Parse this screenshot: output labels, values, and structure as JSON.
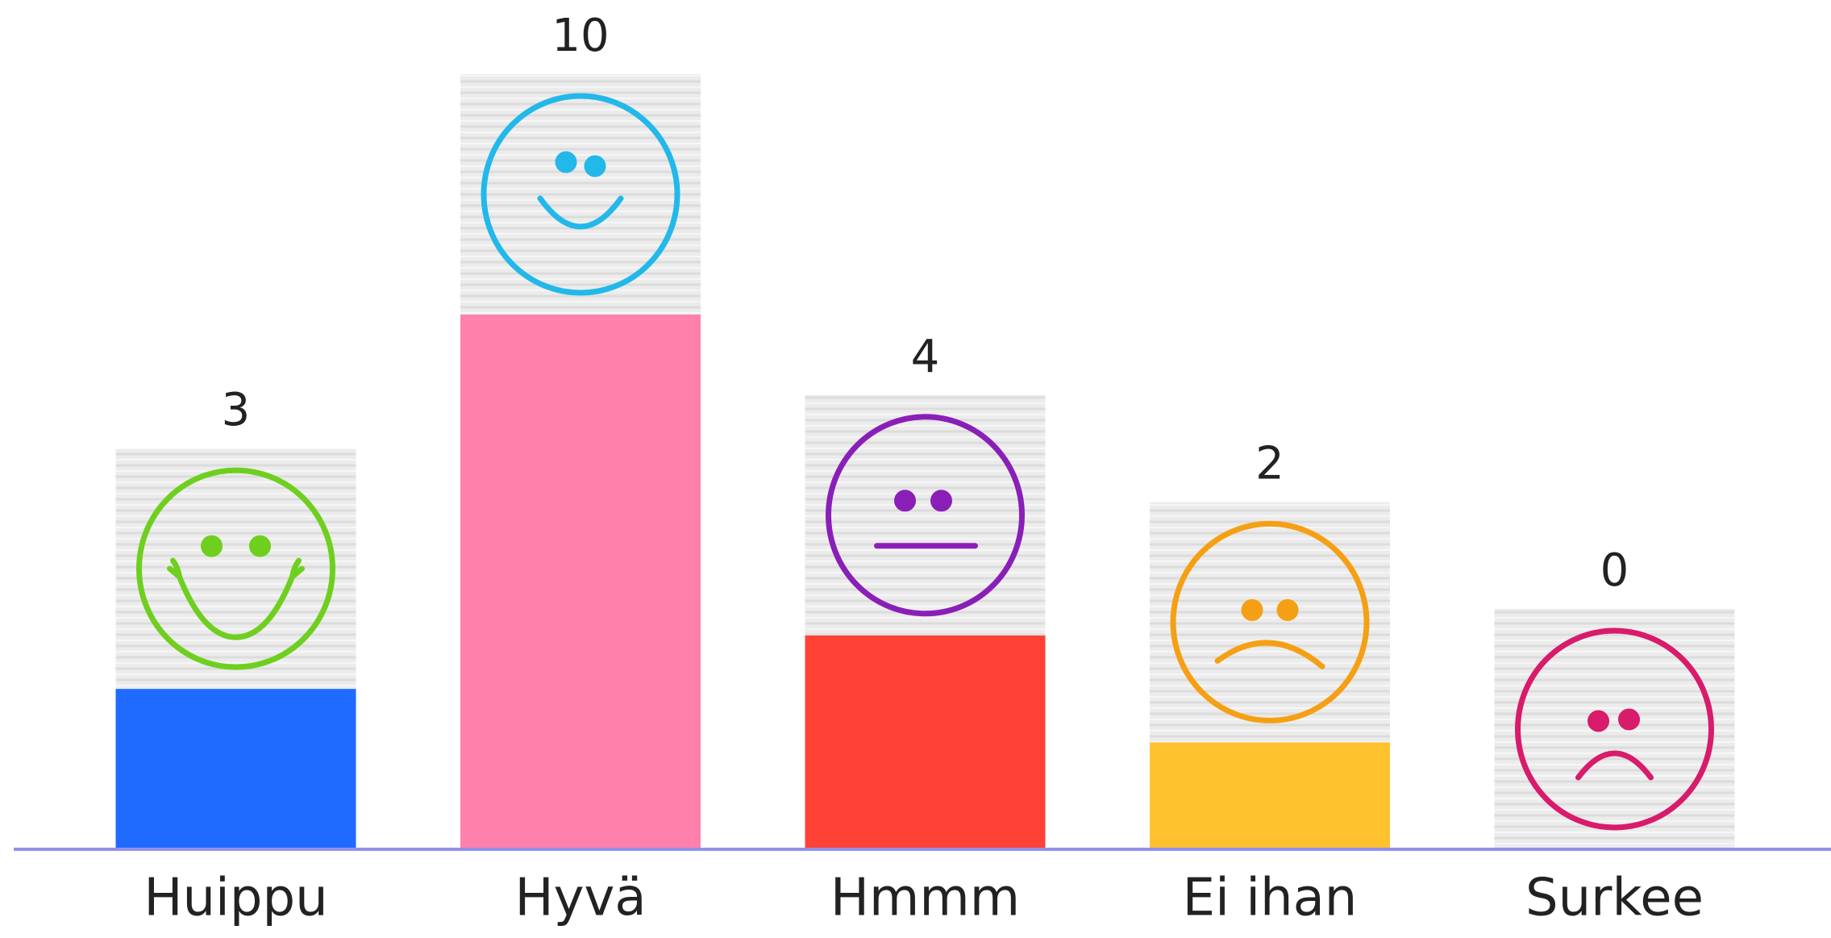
{
  "chart_data": {
    "type": "bar",
    "categories": [
      "Huippu",
      "Hyvä",
      "Hmmm",
      "Ei ihan",
      "Surkee"
    ],
    "values": [
      3,
      10,
      4,
      2,
      0
    ],
    "colors": [
      "#1f6bff",
      "#ff80ab",
      "#ff4136",
      "#ffc12e",
      "#ffffff"
    ],
    "ylim": [
      0,
      10
    ]
  }
}
